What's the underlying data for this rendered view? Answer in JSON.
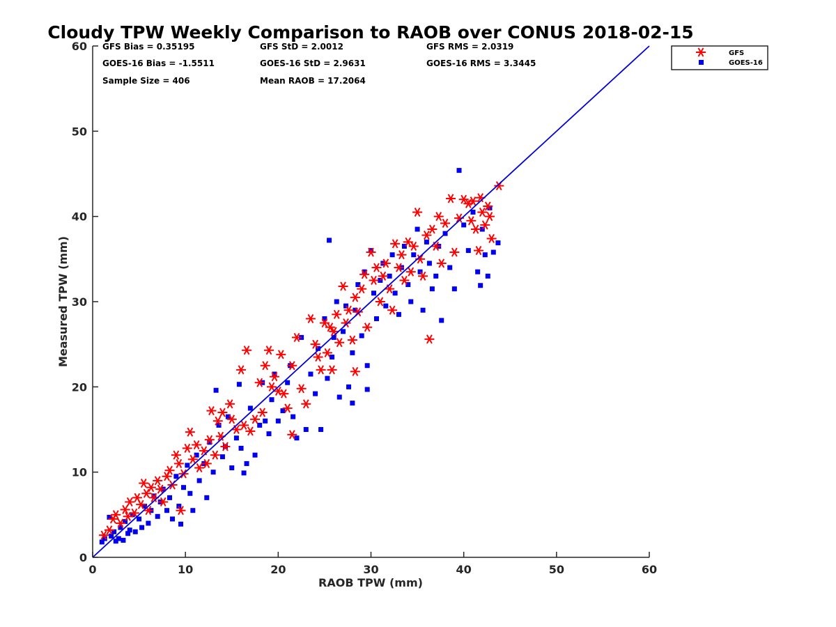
{
  "chart_data": {
    "type": "scatter",
    "title": "Cloudy TPW Weekly Comparison to RAOB over CONUS 2018-02-15",
    "xlabel": "RAOB TPW (mm)",
    "ylabel": "Measured TPW (mm)",
    "xlim": [
      0,
      60
    ],
    "ylim": [
      0,
      60
    ],
    "xticks": [
      0,
      10,
      20,
      30,
      40,
      50,
      60
    ],
    "yticks": [
      0,
      10,
      20,
      30,
      40,
      50,
      60
    ],
    "grid": false,
    "legend_position": "outside-top-right",
    "reference_line": {
      "from": [
        0,
        0
      ],
      "to": [
        60,
        60
      ],
      "color": "#0000dd"
    },
    "stats": [
      "GFS Bias = 0.35195",
      "GFS StD = 2.0012",
      "GFS RMS = 2.0319",
      "GOES-16 Bias = -1.5511",
      "GOES-16 StD = 2.9631",
      "GOES-16 RMS = 3.3445",
      "Sample Size = 406",
      "Mean RAOB = 17.2064"
    ],
    "series": [
      {
        "name": "GFS",
        "marker": "asterisk",
        "color": "#ff0000",
        "points": [
          [
            1.2,
            2.6
          ],
          [
            1.8,
            3.2
          ],
          [
            2.2,
            4.5
          ],
          [
            2.5,
            5.0
          ],
          [
            3.0,
            4.0
          ],
          [
            3.5,
            5.6
          ],
          [
            3.8,
            4.8
          ],
          [
            4.0,
            6.5
          ],
          [
            4.5,
            5.2
          ],
          [
            4.8,
            7.0
          ],
          [
            5.2,
            6.2
          ],
          [
            5.5,
            8.7
          ],
          [
            5.8,
            7.5
          ],
          [
            6.0,
            5.5
          ],
          [
            6.3,
            8.2
          ],
          [
            6.6,
            7.0
          ],
          [
            7.0,
            9.0
          ],
          [
            7.3,
            8.0
          ],
          [
            7.6,
            6.5
          ],
          [
            8.0,
            9.5
          ],
          [
            8.3,
            10.2
          ],
          [
            8.6,
            8.5
          ],
          [
            9.0,
            12.0
          ],
          [
            9.3,
            11.0
          ],
          [
            9.5,
            5.5
          ],
          [
            9.8,
            9.8
          ],
          [
            10.2,
            12.8
          ],
          [
            10.5,
            14.7
          ],
          [
            10.8,
            11.5
          ],
          [
            11.2,
            13.2
          ],
          [
            11.5,
            10.5
          ],
          [
            12.0,
            12.5
          ],
          [
            12.3,
            11.0
          ],
          [
            12.6,
            13.8
          ],
          [
            12.8,
            17.2
          ],
          [
            13.2,
            12.0
          ],
          [
            13.5,
            16.0
          ],
          [
            13.8,
            14.2
          ],
          [
            14.0,
            17.0
          ],
          [
            14.3,
            13.0
          ],
          [
            14.8,
            18.0
          ],
          [
            15.0,
            16.2
          ],
          [
            15.5,
            15.0
          ],
          [
            16.0,
            22.0
          ],
          [
            16.3,
            15.5
          ],
          [
            16.6,
            24.3
          ],
          [
            17.0,
            14.8
          ],
          [
            17.5,
            16.2
          ],
          [
            18.0,
            20.5
          ],
          [
            18.3,
            17.0
          ],
          [
            18.6,
            22.5
          ],
          [
            19.0,
            24.3
          ],
          [
            19.3,
            20.0
          ],
          [
            19.6,
            21.2
          ],
          [
            20.0,
            19.5
          ],
          [
            20.3,
            23.8
          ],
          [
            20.6,
            19.2
          ],
          [
            21.0,
            17.5
          ],
          [
            21.5,
            22.5
          ],
          [
            21.5,
            14.4
          ],
          [
            22.0,
            25.8
          ],
          [
            22.5,
            19.8
          ],
          [
            23.0,
            18.0
          ],
          [
            23.5,
            28.0
          ],
          [
            24.0,
            25.0
          ],
          [
            24.3,
            23.5
          ],
          [
            24.6,
            22.0
          ],
          [
            25.0,
            27.5
          ],
          [
            25.3,
            24.0
          ],
          [
            25.6,
            27.0
          ],
          [
            25.8,
            22.0
          ],
          [
            26.0,
            26.5
          ],
          [
            26.3,
            28.5
          ],
          [
            26.6,
            25.2
          ],
          [
            27.0,
            31.8
          ],
          [
            27.3,
            27.5
          ],
          [
            27.6,
            29.0
          ],
          [
            28.0,
            25.5
          ],
          [
            28.3,
            30.5
          ],
          [
            28.3,
            21.8
          ],
          [
            28.6,
            28.8
          ],
          [
            29.0,
            31.5
          ],
          [
            29.3,
            33.2
          ],
          [
            29.6,
            27.0
          ],
          [
            30.0,
            35.8
          ],
          [
            30.3,
            32.5
          ],
          [
            30.6,
            34.0
          ],
          [
            31.0,
            30.0
          ],
          [
            31.3,
            33.0
          ],
          [
            31.6,
            34.5
          ],
          [
            32.0,
            31.5
          ],
          [
            32.3,
            29.0
          ],
          [
            32.6,
            36.8
          ],
          [
            33.0,
            34.0
          ],
          [
            33.3,
            35.5
          ],
          [
            33.6,
            32.5
          ],
          [
            34.0,
            37.0
          ],
          [
            34.3,
            33.5
          ],
          [
            34.6,
            36.5
          ],
          [
            35.0,
            40.5
          ],
          [
            35.3,
            35.0
          ],
          [
            35.6,
            33.0
          ],
          [
            36.0,
            37.8
          ],
          [
            36.3,
            25.6
          ],
          [
            36.6,
            38.5
          ],
          [
            37.0,
            36.5
          ],
          [
            37.3,
            40.0
          ],
          [
            37.6,
            34.5
          ],
          [
            38.0,
            39.2
          ],
          [
            38.6,
            42.1
          ],
          [
            39.0,
            35.8
          ],
          [
            39.5,
            39.8
          ],
          [
            40.0,
            42.0
          ],
          [
            40.5,
            41.5
          ],
          [
            40.8,
            39.5
          ],
          [
            41.0,
            41.8
          ],
          [
            41.3,
            38.5
          ],
          [
            41.6,
            36.0
          ],
          [
            41.8,
            42.2
          ],
          [
            42.0,
            40.5
          ],
          [
            42.3,
            39.0
          ],
          [
            42.6,
            41.2
          ],
          [
            42.8,
            40.0
          ],
          [
            43.0,
            37.4
          ],
          [
            43.8,
            43.6
          ]
        ]
      },
      {
        "name": "GOES-16",
        "marker": "square",
        "color": "#0000ee",
        "points": [
          [
            1.0,
            1.8
          ],
          [
            1.3,
            2.2
          ],
          [
            1.8,
            4.7
          ],
          [
            2.0,
            2.5
          ],
          [
            2.3,
            3.0
          ],
          [
            2.5,
            1.9
          ],
          [
            2.8,
            2.2
          ],
          [
            3.0,
            3.5
          ],
          [
            3.3,
            2.0
          ],
          [
            3.5,
            4.2
          ],
          [
            3.8,
            2.8
          ],
          [
            4.0,
            3.2
          ],
          [
            4.3,
            5.0
          ],
          [
            4.6,
            3.0
          ],
          [
            5.0,
            4.5
          ],
          [
            5.3,
            3.5
          ],
          [
            5.6,
            6.0
          ],
          [
            6.0,
            4.0
          ],
          [
            6.3,
            5.5
          ],
          [
            6.6,
            7.2
          ],
          [
            7.0,
            4.8
          ],
          [
            7.3,
            6.5
          ],
          [
            7.6,
            8.0
          ],
          [
            8.0,
            5.5
          ],
          [
            8.3,
            7.0
          ],
          [
            8.6,
            4.5
          ],
          [
            9.0,
            9.5
          ],
          [
            9.3,
            6.0
          ],
          [
            9.5,
            3.9
          ],
          [
            9.8,
            8.2
          ],
          [
            10.2,
            10.8
          ],
          [
            10.5,
            7.5
          ],
          [
            10.8,
            5.5
          ],
          [
            11.2,
            12.0
          ],
          [
            11.5,
            9.0
          ],
          [
            12.0,
            11.0
          ],
          [
            12.3,
            7.0
          ],
          [
            12.6,
            13.5
          ],
          [
            13.0,
            10.0
          ],
          [
            13.3,
            19.6
          ],
          [
            13.6,
            15.5
          ],
          [
            14.0,
            11.8
          ],
          [
            14.3,
            13.0
          ],
          [
            14.6,
            16.5
          ],
          [
            15.0,
            10.5
          ],
          [
            15.5,
            14.0
          ],
          [
            15.8,
            20.3
          ],
          [
            16.0,
            12.8
          ],
          [
            16.3,
            9.9
          ],
          [
            16.6,
            11.0
          ],
          [
            17.0,
            17.5
          ],
          [
            17.5,
            12.0
          ],
          [
            18.0,
            15.5
          ],
          [
            18.3,
            20.5
          ],
          [
            18.6,
            16.0
          ],
          [
            19.0,
            14.5
          ],
          [
            19.3,
            18.5
          ],
          [
            19.6,
            21.5
          ],
          [
            20.0,
            16.0
          ],
          [
            20.5,
            17.2
          ],
          [
            21.0,
            20.5
          ],
          [
            21.3,
            22.5
          ],
          [
            21.6,
            16.5
          ],
          [
            22.0,
            14.0
          ],
          [
            22.5,
            25.8
          ],
          [
            23.0,
            15.0
          ],
          [
            23.5,
            21.5
          ],
          [
            24.0,
            19.2
          ],
          [
            24.3,
            24.5
          ],
          [
            24.6,
            15.0
          ],
          [
            25.0,
            28.0
          ],
          [
            25.3,
            21.0
          ],
          [
            25.5,
            37.2
          ],
          [
            25.8,
            23.5
          ],
          [
            26.0,
            25.8
          ],
          [
            26.3,
            30.0
          ],
          [
            26.6,
            18.8
          ],
          [
            27.0,
            26.5
          ],
          [
            27.3,
            29.5
          ],
          [
            27.6,
            20.0
          ],
          [
            28.0,
            24.0
          ],
          [
            28.0,
            18.1
          ],
          [
            28.3,
            29.0
          ],
          [
            28.6,
            32.0
          ],
          [
            29.0,
            26.0
          ],
          [
            29.3,
            33.5
          ],
          [
            29.6,
            22.5
          ],
          [
            29.6,
            19.7
          ],
          [
            30.0,
            36.0
          ],
          [
            30.3,
            31.0
          ],
          [
            30.6,
            28.0
          ],
          [
            31.0,
            32.5
          ],
          [
            31.3,
            34.5
          ],
          [
            31.6,
            29.5
          ],
          [
            32.0,
            33.0
          ],
          [
            32.3,
            35.5
          ],
          [
            32.6,
            31.0
          ],
          [
            33.0,
            28.5
          ],
          [
            33.3,
            34.0
          ],
          [
            33.6,
            36.5
          ],
          [
            34.0,
            32.0
          ],
          [
            34.3,
            30.0
          ],
          [
            34.6,
            35.5
          ],
          [
            35.0,
            38.5
          ],
          [
            35.3,
            33.5
          ],
          [
            35.6,
            29.0
          ],
          [
            36.0,
            37.0
          ],
          [
            36.3,
            34.5
          ],
          [
            36.6,
            31.5
          ],
          [
            37.0,
            33.0
          ],
          [
            37.3,
            36.5
          ],
          [
            37.6,
            27.8
          ],
          [
            38.0,
            38.0
          ],
          [
            38.5,
            34.0
          ],
          [
            39.0,
            31.5
          ],
          [
            39.5,
            45.4
          ],
          [
            40.0,
            39.0
          ],
          [
            40.5,
            36.0
          ],
          [
            41.0,
            40.5
          ],
          [
            41.5,
            33.5
          ],
          [
            41.8,
            31.9
          ],
          [
            42.0,
            38.5
          ],
          [
            42.3,
            35.5
          ],
          [
            42.6,
            33.0
          ],
          [
            42.8,
            41.0
          ],
          [
            43.2,
            35.8
          ],
          [
            43.7,
            36.9
          ]
        ]
      }
    ]
  }
}
